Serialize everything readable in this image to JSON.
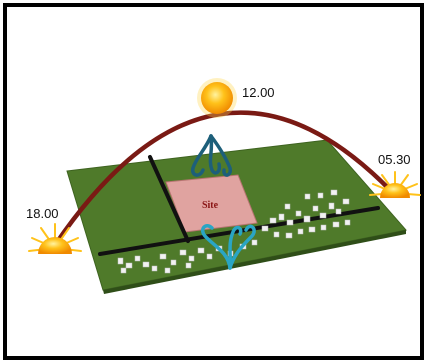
{
  "labels": {
    "noon": "12.00",
    "morning": "05.30",
    "evening": "18.00",
    "site": "Site"
  },
  "colors": {
    "border": "#000000",
    "ground": "#4f7a2a",
    "ground_edge": "#3e6320",
    "sun_arc": "#7a1a14",
    "site_plot": "#e0a3a0",
    "road": "#111111",
    "buildings": "#f2f2f2",
    "wind_dark": "#1d5f7a",
    "wind_light": "#2aa5c4",
    "sun_core": "#ffb300",
    "sun_rays": "#ffc21a"
  },
  "icons": {
    "noon_sun": "sun-icon",
    "morning_sun": "rising-sun-icon",
    "evening_sun": "setting-sun-icon",
    "wind_north": "wind-swirl-icon",
    "wind_south": "wind-swirl-icon"
  }
}
